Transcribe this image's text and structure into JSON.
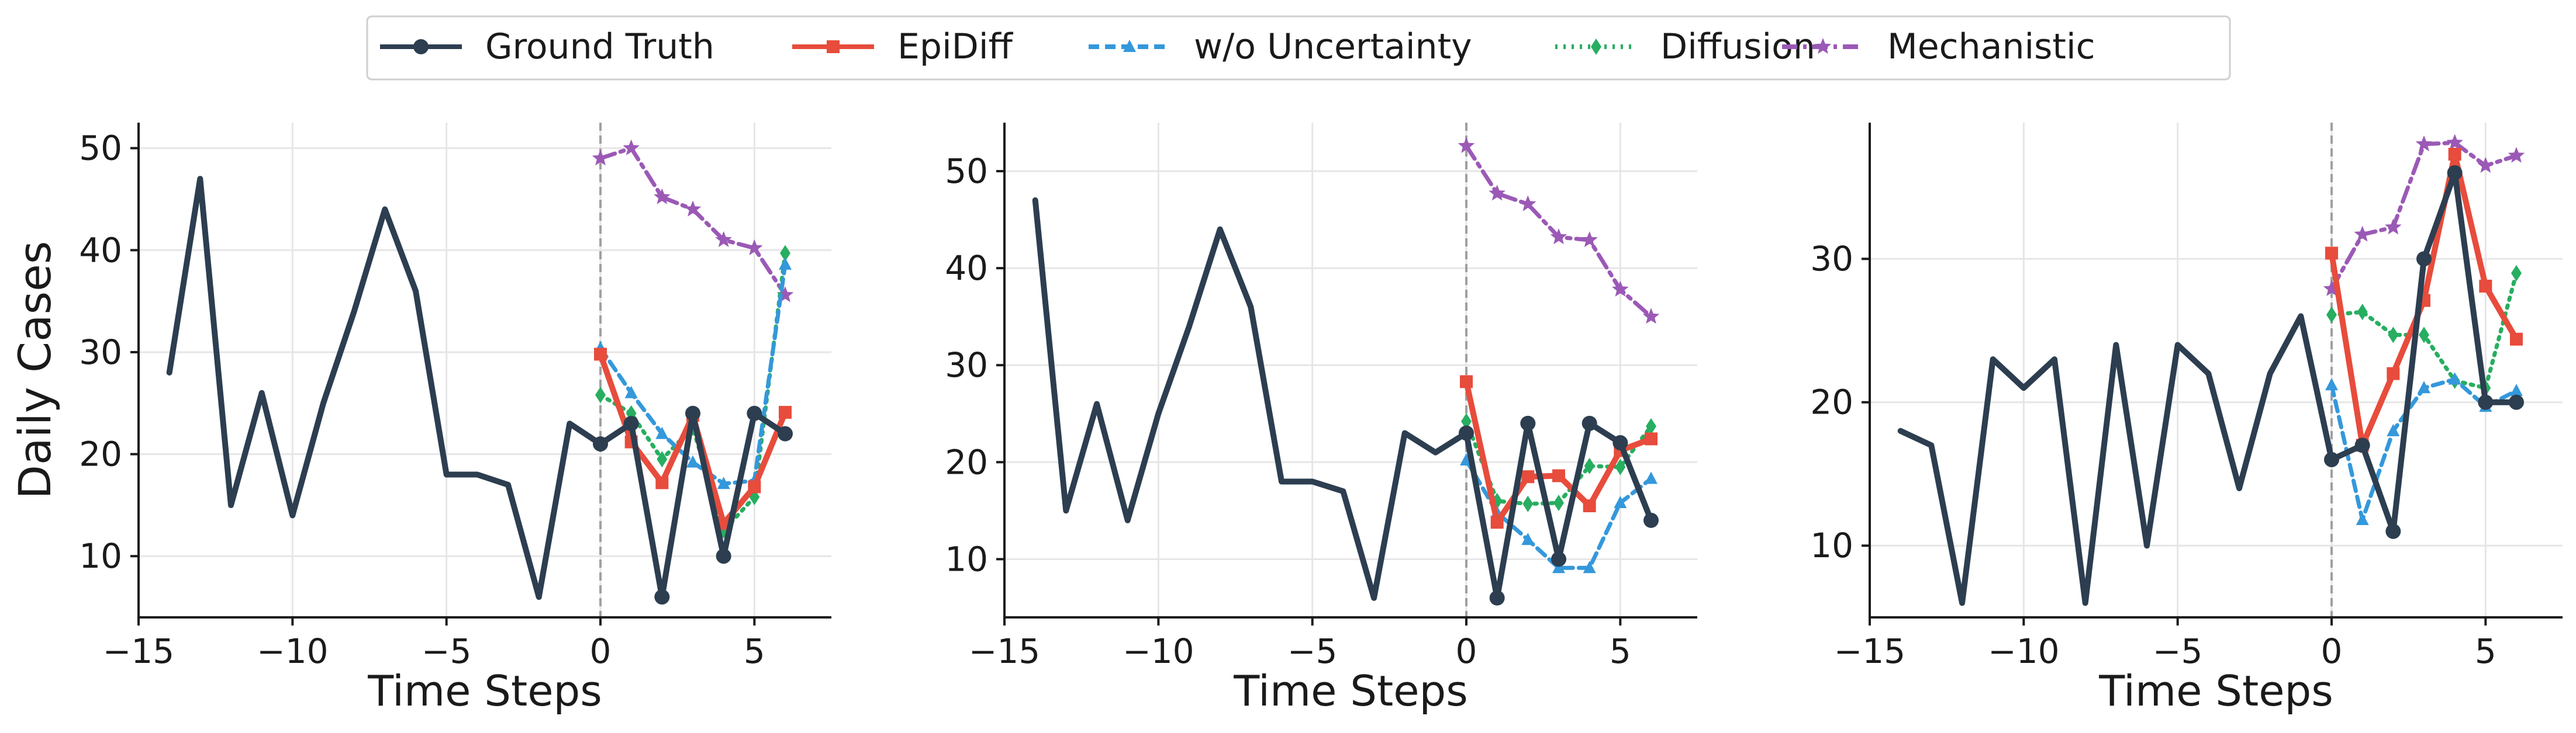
{
  "legend": {
    "placement": "top-center",
    "entries": [
      {
        "key": "gt",
        "label": "Ground Truth"
      },
      {
        "key": "epi",
        "label": "EpiDiff"
      },
      {
        "key": "wou",
        "label": "w/o Uncertainty"
      },
      {
        "key": "diff",
        "label": "Diffusion"
      },
      {
        "key": "mech",
        "label": "Mechanistic"
      }
    ]
  },
  "styles": {
    "gt": {
      "color": "#2c3e50",
      "dash": "",
      "marker": "circle"
    },
    "epi": {
      "color": "#e74c3c",
      "dash": "",
      "marker": "square"
    },
    "wou": {
      "color": "#3498db",
      "dash": "18,10",
      "marker": "triangle"
    },
    "diff": {
      "color": "#27ae60",
      "dash": "4,10",
      "marker": "diamond"
    },
    "mech": {
      "color": "#9b59b6",
      "dash": "26,10,6,10",
      "marker": "star"
    }
  },
  "chart_data": [
    {
      "type": "line",
      "xlabel": "Time Steps",
      "ylabel": "Daily Cases",
      "xlim": [
        -15,
        7.5
      ],
      "ylim": [
        4,
        52.5
      ],
      "xticks": [
        -15,
        -10,
        -5,
        0,
        5
      ],
      "yticks": [
        10,
        20,
        30,
        40,
        50
      ],
      "grid": true,
      "forecast_start": 0,
      "series": [
        {
          "key": "gt",
          "name": "Ground Truth",
          "x": [
            -14,
            -13,
            -12,
            -11,
            -10,
            -9,
            -8,
            -7,
            -6,
            -5,
            -4,
            -3,
            -2,
            -1,
            0,
            1,
            2,
            3,
            4,
            5,
            6
          ],
          "y": [
            28,
            47,
            15,
            26,
            14,
            25,
            34,
            44,
            36,
            18,
            18,
            17,
            6,
            23,
            21,
            23,
            6,
            24,
            10,
            24,
            22
          ]
        },
        {
          "key": "epi",
          "name": "EpiDiff",
          "x": [
            0,
            1,
            2,
            3,
            4,
            5,
            6
          ],
          "y": [
            29.8,
            21.2,
            17.2,
            23.8,
            13.2,
            16.8,
            24.1
          ]
        },
        {
          "key": "wou",
          "name": "w/o Uncertainty",
          "x": [
            0,
            1,
            2,
            3,
            4,
            5,
            6
          ],
          "y": [
            30.4,
            26.0,
            22.0,
            19.2,
            17.1,
            17.4,
            38.6
          ]
        },
        {
          "key": "diff",
          "name": "Diffusion",
          "x": [
            0,
            1,
            2,
            3,
            4,
            5,
            6
          ],
          "y": [
            25.8,
            24.0,
            19.5,
            22.6,
            12.5,
            15.8,
            39.7
          ]
        },
        {
          "key": "mech",
          "name": "Mechanistic",
          "x": [
            0,
            1,
            2,
            3,
            4,
            5,
            6
          ],
          "y": [
            49.0,
            50.0,
            45.2,
            44.0,
            41.0,
            40.2,
            35.6
          ]
        }
      ]
    },
    {
      "type": "line",
      "xlabel": "Time Steps",
      "ylabel": "",
      "xlim": [
        -15,
        7.5
      ],
      "ylim": [
        4,
        55
      ],
      "xticks": [
        -15,
        -10,
        -5,
        0,
        5
      ],
      "yticks": [
        10,
        20,
        30,
        40,
        50
      ],
      "grid": true,
      "forecast_start": 0,
      "series": [
        {
          "key": "gt",
          "name": "Ground Truth",
          "x": [
            -14,
            -13,
            -12,
            -11,
            -10,
            -9,
            -8,
            -7,
            -6,
            -5,
            -4,
            -3,
            -2,
            -1,
            0,
            1,
            2,
            3,
            4,
            5,
            6
          ],
          "y": [
            47,
            15,
            26,
            14,
            25,
            34,
            44,
            36,
            18,
            18,
            17,
            6,
            23,
            21,
            23,
            6,
            24,
            10,
            24,
            22,
            14
          ]
        },
        {
          "key": "epi",
          "name": "EpiDiff",
          "x": [
            0,
            1,
            2,
            3,
            4,
            5,
            6
          ],
          "y": [
            28.3,
            13.8,
            18.5,
            18.6,
            15.5,
            21.2,
            22.4
          ]
        },
        {
          "key": "wou",
          "name": "w/o Uncertainty",
          "x": [
            0,
            1,
            2,
            3,
            4,
            5,
            6
          ],
          "y": [
            20.2,
            14.8,
            12.0,
            9.1,
            9.1,
            15.8,
            18.3
          ]
        },
        {
          "key": "diff",
          "name": "Diffusion",
          "x": [
            0,
            1,
            2,
            3,
            4,
            5,
            6
          ],
          "y": [
            24.2,
            16.0,
            15.7,
            15.8,
            19.6,
            19.5,
            23.7
          ]
        },
        {
          "key": "mech",
          "name": "Mechanistic",
          "x": [
            0,
            1,
            2,
            3,
            4,
            5,
            6
          ],
          "y": [
            52.6,
            47.7,
            46.6,
            43.2,
            42.9,
            37.8,
            35.0
          ]
        }
      ]
    },
    {
      "type": "line",
      "xlabel": "Time Steps",
      "ylabel": "",
      "xlim": [
        -15,
        7.5
      ],
      "ylim": [
        5,
        39.5
      ],
      "xticks": [
        -15,
        -10,
        -5,
        0,
        5
      ],
      "yticks": [
        10,
        20,
        30
      ],
      "grid": true,
      "forecast_start": 0,
      "series": [
        {
          "key": "gt",
          "name": "Ground Truth",
          "x": [
            -14,
            -13,
            -12,
            -11,
            -10,
            -9,
            -8,
            -7,
            -6,
            -5,
            -4,
            -3,
            -2,
            -1,
            0,
            1,
            2,
            3,
            4,
            5,
            6
          ],
          "y": [
            18,
            17,
            6,
            23,
            21,
            23,
            6,
            24,
            10,
            24,
            22,
            14,
            22,
            26,
            16,
            17,
            11,
            30,
            36,
            20,
            20
          ]
        },
        {
          "key": "epi",
          "name": "EpiDiff",
          "x": [
            0,
            1,
            2,
            3,
            4,
            5,
            6
          ],
          "y": [
            30.4,
            17.0,
            22.0,
            27.1,
            37.3,
            28.1,
            24.4
          ]
        },
        {
          "key": "wou",
          "name": "w/o Uncertainty",
          "x": [
            0,
            1,
            2,
            3,
            4,
            5,
            6
          ],
          "y": [
            21.2,
            11.8,
            18.0,
            21.0,
            21.6,
            19.7,
            20.8
          ]
        },
        {
          "key": "diff",
          "name": "Diffusion",
          "x": [
            0,
            1,
            2,
            3,
            4,
            5,
            6
          ],
          "y": [
            26.1,
            26.3,
            24.7,
            24.7,
            21.5,
            21.0,
            29.0
          ]
        },
        {
          "key": "mech",
          "name": "Mechanistic",
          "x": [
            0,
            1,
            2,
            3,
            4,
            5,
            6
          ],
          "y": [
            27.9,
            31.7,
            32.2,
            38.0,
            38.1,
            36.5,
            37.2
          ]
        }
      ]
    }
  ]
}
